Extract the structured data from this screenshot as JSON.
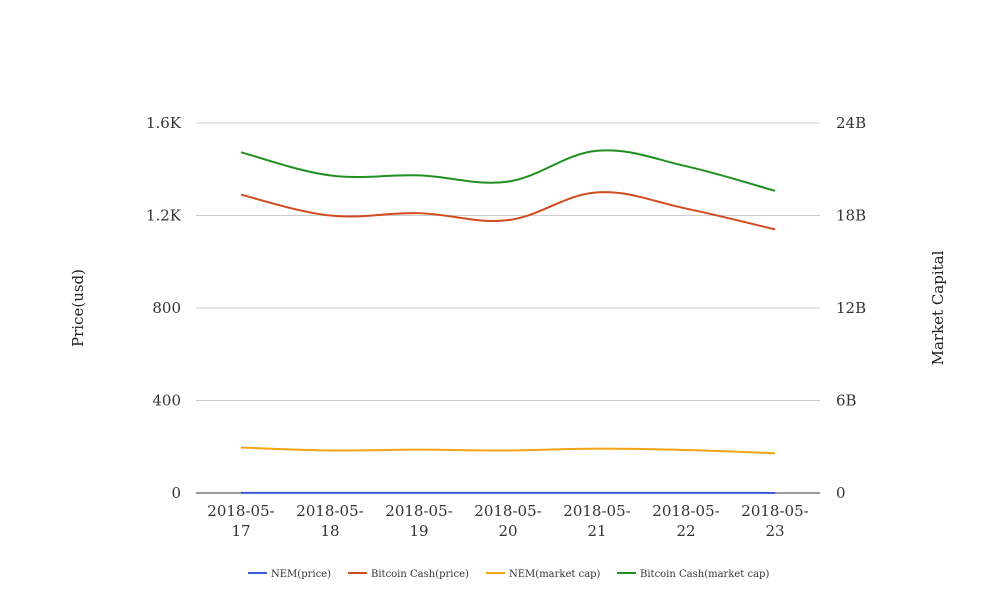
{
  "chart_data": {
    "type": "line",
    "categories": [
      [
        "2018-05-",
        "17"
      ],
      [
        "2018-05-",
        "18"
      ],
      [
        "2018-05-",
        "19"
      ],
      [
        "2018-05-",
        "20"
      ],
      [
        "2018-05-",
        "21"
      ],
      [
        "2018-05-",
        "22"
      ],
      [
        "2018-05-",
        "23"
      ]
    ],
    "left_axis": {
      "label": "Price(usd)",
      "ticks": [
        "0",
        "400",
        "800",
        "1.2K",
        "1.6K"
      ],
      "tick_values": [
        0,
        400,
        800,
        1200,
        1600
      ],
      "ylim": [
        0,
        1600
      ]
    },
    "right_axis": {
      "label": "Market Capital",
      "ticks": [
        "0",
        "6B",
        "12B",
        "18B",
        "24B"
      ],
      "tick_values": [
        0,
        6000000000,
        12000000000,
        18000000000,
        24000000000
      ],
      "ylim": [
        0,
        24000000000
      ]
    },
    "grid": true,
    "legend_position": "bottom",
    "series": [
      {
        "name": "NEM(price)",
        "axis": "left",
        "color": "#3b5bdb",
        "values": [
          0.3,
          0.29,
          0.28,
          0.28,
          0.29,
          0.28,
          0.27
        ]
      },
      {
        "name": "Bitcoin Cash(price)",
        "axis": "left",
        "color": "#d24a1e",
        "values": [
          1290,
          1200,
          1210,
          1180,
          1300,
          1230,
          1140
        ]
      },
      {
        "name": "NEM(market cap)",
        "axis": "right",
        "color": "#f5a312",
        "values": [
          2950000000,
          2760000000,
          2810000000,
          2760000000,
          2880000000,
          2790000000,
          2580000000
        ]
      },
      {
        "name": "Bitcoin Cash(market cap)",
        "axis": "right",
        "color": "#1f8f1f",
        "values": [
          22100000000,
          20600000000,
          20600000000,
          20200000000,
          22200000000,
          21200000000,
          19600000000
        ]
      }
    ]
  }
}
